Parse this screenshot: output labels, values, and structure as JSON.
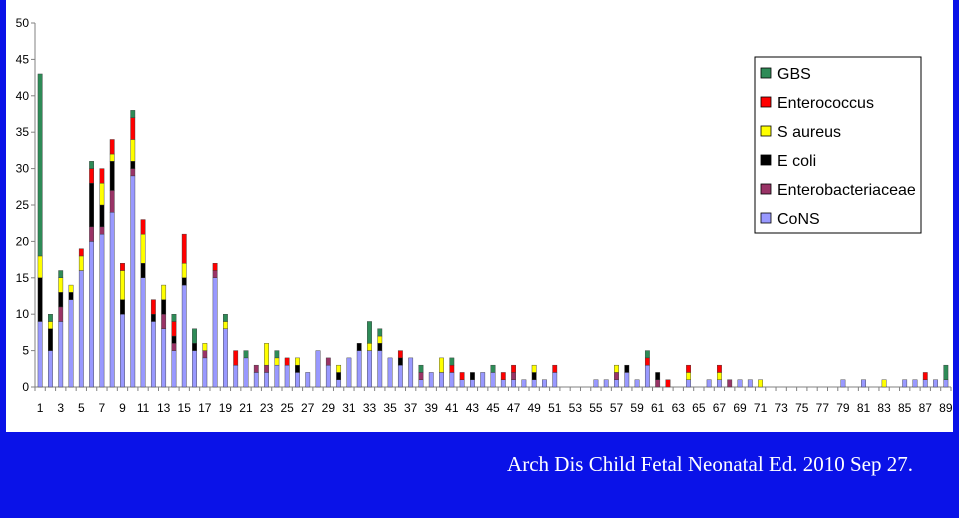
{
  "citation": "Arch Dis Child Fetal Neonatal Ed. 2010 Sep 27.",
  "chart_data": {
    "type": "bar",
    "stacked": true,
    "title": "",
    "xlabel": "",
    "ylabel": "",
    "ylim": [
      0,
      50
    ],
    "yticks": [
      0,
      5,
      10,
      15,
      20,
      25,
      30,
      35,
      40,
      45,
      50
    ],
    "x": [
      1,
      2,
      3,
      4,
      5,
      6,
      7,
      8,
      9,
      10,
      11,
      12,
      13,
      14,
      15,
      16,
      17,
      18,
      19,
      20,
      21,
      22,
      23,
      24,
      25,
      26,
      27,
      28,
      29,
      30,
      31,
      32,
      33,
      34,
      35,
      36,
      37,
      38,
      39,
      40,
      41,
      42,
      43,
      44,
      45,
      46,
      47,
      48,
      49,
      50,
      51,
      52,
      53,
      54,
      55,
      56,
      57,
      58,
      59,
      60,
      61,
      62,
      63,
      64,
      65,
      66,
      67,
      68,
      69,
      70,
      71,
      72,
      73,
      74,
      75,
      76,
      77,
      78,
      79,
      80,
      81,
      82,
      83,
      84,
      85,
      86,
      87,
      88,
      89
    ],
    "x_tick_labels": [
      "1",
      "3",
      "5",
      "7",
      "9",
      "11",
      "13",
      "15",
      "17",
      "19",
      "21",
      "23",
      "25",
      "27",
      "29",
      "31",
      "33",
      "35",
      "37",
      "39",
      "41",
      "43",
      "45",
      "47",
      "49",
      "51",
      "53",
      "55",
      "57",
      "59",
      "61",
      "63",
      "65",
      "67",
      "69",
      "71",
      "73",
      "75",
      "77",
      "79",
      "81",
      "83",
      "85",
      "87",
      "89"
    ],
    "grid": false,
    "legend_position": "top-right",
    "series": [
      {
        "name": "CoNS",
        "color": "#9999ff",
        "values": [
          9,
          5,
          9,
          12,
          16,
          20,
          21,
          24,
          10,
          29,
          15,
          9,
          8,
          5,
          14,
          5,
          4,
          15,
          8,
          3,
          4,
          2,
          2,
          3,
          3,
          2,
          2,
          5,
          3,
          1,
          4,
          5,
          5,
          5,
          4,
          3,
          4,
          1,
          2,
          2,
          2,
          1,
          1,
          2,
          2,
          1,
          1,
          1,
          1,
          1,
          2,
          0,
          0,
          0,
          1,
          1,
          1,
          2,
          1,
          3,
          0,
          0,
          0,
          1,
          0,
          1,
          1,
          0,
          1,
          1,
          0,
          0,
          0,
          0,
          0,
          0,
          0,
          0,
          1,
          0,
          1,
          0,
          0,
          0,
          1,
          1,
          1,
          1,
          1
        ]
      },
      {
        "name": "Enterobacteriaceae",
        "color": "#993366",
        "values": [
          0,
          0,
          2,
          0,
          0,
          2,
          1,
          3,
          0,
          1,
          0,
          0,
          2,
          1,
          0,
          0,
          1,
          1,
          0,
          0,
          0,
          1,
          1,
          0,
          0,
          0,
          0,
          0,
          1,
          0,
          0,
          0,
          0,
          0,
          0,
          0,
          0,
          1,
          0,
          0,
          0,
          0,
          0,
          0,
          0,
          0,
          1,
          0,
          0,
          0,
          0,
          0,
          0,
          0,
          0,
          0,
          1,
          0,
          0,
          0,
          1,
          0,
          0,
          0,
          0,
          0,
          0,
          1,
          0,
          0,
          0,
          0,
          0,
          0,
          0,
          0,
          0,
          0,
          0,
          0,
          0,
          0,
          0,
          0,
          0,
          0,
          0,
          0,
          0
        ]
      },
      {
        "name": "E coli",
        "color": "#000000",
        "values": [
          6,
          3,
          2,
          1,
          0,
          6,
          3,
          4,
          2,
          1,
          2,
          1,
          2,
          1,
          1,
          1,
          0,
          0,
          0,
          0,
          0,
          0,
          0,
          0,
          0,
          1,
          0,
          0,
          0,
          1,
          0,
          1,
          0,
          1,
          0,
          1,
          0,
          0,
          0,
          0,
          0,
          0,
          1,
          0,
          0,
          0,
          0,
          0,
          1,
          0,
          0,
          0,
          0,
          0,
          0,
          0,
          0,
          1,
          0,
          0,
          1,
          0,
          0,
          0,
          0,
          0,
          0,
          0,
          0,
          0,
          0,
          0,
          0,
          0,
          0,
          0,
          0,
          0,
          0,
          0,
          0,
          0,
          0,
          0,
          0,
          0,
          0,
          0,
          0
        ]
      },
      {
        "name": "S aureus",
        "color": "#ffff00",
        "values": [
          3,
          1,
          2,
          1,
          2,
          0,
          3,
          1,
          4,
          3,
          4,
          0,
          2,
          0,
          2,
          0,
          1,
          0,
          1,
          0,
          0,
          0,
          3,
          1,
          0,
          1,
          0,
          0,
          0,
          1,
          0,
          0,
          1,
          1,
          0,
          0,
          0,
          0,
          0,
          2,
          0,
          0,
          0,
          0,
          0,
          0,
          0,
          0,
          1,
          0,
          0,
          0,
          0,
          0,
          0,
          0,
          1,
          0,
          0,
          0,
          0,
          0,
          0,
          1,
          0,
          0,
          1,
          0,
          0,
          0,
          1,
          0,
          0,
          0,
          0,
          0,
          0,
          0,
          0,
          0,
          0,
          0,
          1,
          0,
          0,
          0,
          0,
          0,
          0
        ]
      },
      {
        "name": "Enterococcus",
        "color": "#ff0000",
        "values": [
          0,
          0,
          0,
          0,
          1,
          2,
          2,
          2,
          1,
          3,
          2,
          2,
          0,
          2,
          4,
          0,
          0,
          1,
          0,
          2,
          0,
          0,
          0,
          0,
          1,
          0,
          0,
          0,
          0,
          0,
          0,
          0,
          0,
          0,
          0,
          1,
          0,
          0,
          0,
          0,
          1,
          1,
          0,
          0,
          0,
          1,
          1,
          0,
          0,
          0,
          1,
          0,
          0,
          0,
          0,
          0,
          0,
          0,
          0,
          1,
          0,
          1,
          0,
          1,
          0,
          0,
          1,
          0,
          0,
          0,
          0,
          0,
          0,
          0,
          0,
          0,
          0,
          0,
          0,
          0,
          0,
          0,
          0,
          0,
          0,
          0,
          1,
          0,
          0
        ]
      },
      {
        "name": "GBS",
        "color": "#2e8b57",
        "values": [
          25,
          1,
          1,
          0,
          0,
          1,
          0,
          0,
          0,
          1,
          0,
          0,
          0,
          1,
          0,
          2,
          0,
          0,
          1,
          0,
          1,
          0,
          0,
          1,
          0,
          0,
          0,
          0,
          0,
          0,
          0,
          0,
          3,
          1,
          0,
          0,
          0,
          1,
          0,
          0,
          1,
          0,
          0,
          0,
          1,
          0,
          0,
          0,
          0,
          0,
          0,
          0,
          0,
          0,
          0,
          0,
          0,
          0,
          0,
          1,
          0,
          0,
          0,
          0,
          0,
          0,
          0,
          0,
          0,
          0,
          0,
          0,
          0,
          0,
          0,
          0,
          0,
          0,
          0,
          0,
          0,
          0,
          0,
          0,
          0,
          0,
          0,
          0,
          2
        ]
      }
    ]
  }
}
